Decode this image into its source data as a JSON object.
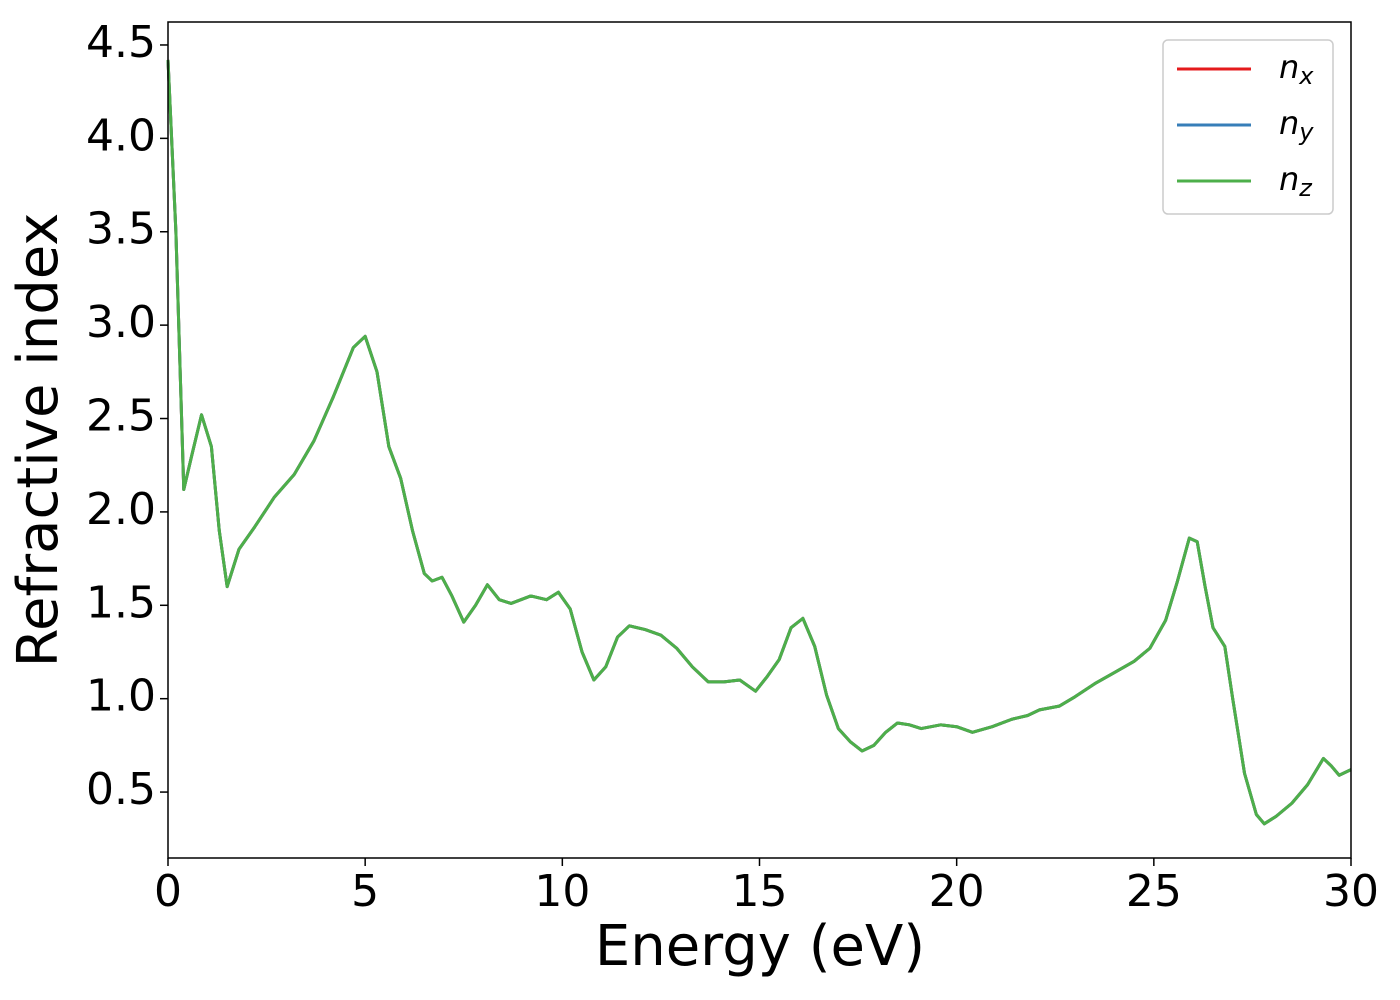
{
  "chart_data": {
    "type": "line",
    "x_label": "Energy (eV)",
    "y_label": "Refractive index",
    "x": [
      0,
      0.2,
      0.4,
      0.6,
      0.85,
      1.1,
      1.3,
      1.5,
      1.8,
      2.2,
      2.7,
      3.2,
      3.7,
      4.2,
      4.7,
      5.0,
      5.3,
      5.6,
      5.9,
      6.2,
      6.5,
      6.7,
      6.95,
      7.2,
      7.5,
      7.8,
      8.1,
      8.4,
      8.7,
      9.2,
      9.6,
      9.9,
      10.2,
      10.5,
      10.8,
      11.1,
      11.4,
      11.7,
      12.1,
      12.5,
      12.9,
      13.3,
      13.7,
      14.1,
      14.5,
      14.9,
      15.2,
      15.5,
      15.8,
      16.1,
      16.4,
      16.7,
      17.0,
      17.3,
      17.6,
      17.9,
      18.2,
      18.5,
      18.8,
      19.1,
      19.6,
      20.0,
      20.4,
      20.9,
      21.4,
      21.8,
      22.1,
      22.6,
      23.0,
      23.5,
      24.0,
      24.5,
      24.9,
      25.3,
      25.6,
      25.9,
      26.1,
      26.3,
      26.5,
      26.8,
      27.0,
      27.3,
      27.6,
      27.8,
      28.1,
      28.5,
      28.9,
      29.3,
      29.5,
      29.7,
      30.0
    ],
    "series": [
      {
        "name": "nx",
        "color": "#e41a1c",
        "values": [
          4.42,
          3.5,
          2.12,
          2.3,
          2.52,
          2.35,
          1.9,
          1.6,
          1.8,
          1.92,
          2.08,
          2.2,
          2.38,
          2.62,
          2.88,
          2.94,
          2.75,
          2.35,
          2.18,
          1.9,
          1.67,
          1.63,
          1.65,
          1.55,
          1.41,
          1.5,
          1.61,
          1.53,
          1.51,
          1.55,
          1.53,
          1.57,
          1.48,
          1.25,
          1.1,
          1.17,
          1.33,
          1.39,
          1.37,
          1.34,
          1.27,
          1.17,
          1.09,
          1.09,
          1.1,
          1.04,
          1.12,
          1.21,
          1.38,
          1.43,
          1.28,
          1.02,
          0.84,
          0.77,
          0.72,
          0.75,
          0.82,
          0.87,
          0.86,
          0.84,
          0.86,
          0.85,
          0.82,
          0.85,
          0.89,
          0.91,
          0.94,
          0.96,
          1.01,
          1.08,
          1.14,
          1.2,
          1.27,
          1.42,
          1.63,
          1.86,
          1.84,
          1.6,
          1.38,
          1.28,
          1.0,
          0.6,
          0.38,
          0.33,
          0.37,
          0.44,
          0.54,
          0.68,
          0.64,
          0.59,
          0.62
        ]
      },
      {
        "name": "ny",
        "color": "#377eb8",
        "values": [
          4.42,
          3.5,
          2.12,
          2.3,
          2.52,
          2.35,
          1.9,
          1.6,
          1.8,
          1.92,
          2.08,
          2.2,
          2.38,
          2.62,
          2.88,
          2.94,
          2.75,
          2.35,
          2.18,
          1.9,
          1.67,
          1.63,
          1.65,
          1.55,
          1.41,
          1.5,
          1.61,
          1.53,
          1.51,
          1.55,
          1.53,
          1.57,
          1.48,
          1.25,
          1.1,
          1.17,
          1.33,
          1.39,
          1.37,
          1.34,
          1.27,
          1.17,
          1.09,
          1.09,
          1.1,
          1.04,
          1.12,
          1.21,
          1.38,
          1.43,
          1.28,
          1.02,
          0.84,
          0.77,
          0.72,
          0.75,
          0.82,
          0.87,
          0.86,
          0.84,
          0.86,
          0.85,
          0.82,
          0.85,
          0.89,
          0.91,
          0.94,
          0.96,
          1.01,
          1.08,
          1.14,
          1.2,
          1.27,
          1.42,
          1.63,
          1.86,
          1.84,
          1.6,
          1.38,
          1.28,
          1.0,
          0.6,
          0.38,
          0.33,
          0.37,
          0.44,
          0.54,
          0.68,
          0.64,
          0.59,
          0.62
        ]
      },
      {
        "name": "nz",
        "color": "#4daf4a",
        "values": [
          4.42,
          3.5,
          2.12,
          2.3,
          2.52,
          2.35,
          1.9,
          1.6,
          1.8,
          1.92,
          2.08,
          2.2,
          2.38,
          2.62,
          2.88,
          2.94,
          2.75,
          2.35,
          2.18,
          1.9,
          1.67,
          1.63,
          1.65,
          1.55,
          1.41,
          1.5,
          1.61,
          1.53,
          1.51,
          1.55,
          1.53,
          1.57,
          1.48,
          1.25,
          1.1,
          1.17,
          1.33,
          1.39,
          1.37,
          1.34,
          1.27,
          1.17,
          1.09,
          1.09,
          1.1,
          1.04,
          1.12,
          1.21,
          1.38,
          1.43,
          1.28,
          1.02,
          0.84,
          0.77,
          0.72,
          0.75,
          0.82,
          0.87,
          0.86,
          0.84,
          0.86,
          0.85,
          0.82,
          0.85,
          0.89,
          0.91,
          0.94,
          0.96,
          1.01,
          1.08,
          1.14,
          1.2,
          1.27,
          1.42,
          1.63,
          1.86,
          1.84,
          1.6,
          1.38,
          1.28,
          1.0,
          0.6,
          0.38,
          0.33,
          0.37,
          0.44,
          0.54,
          0.68,
          0.64,
          0.59,
          0.62
        ]
      }
    ],
    "xlim": [
      0,
      30
    ],
    "xticks": [
      0,
      5,
      10,
      15,
      20,
      25,
      30
    ],
    "ylim": [
      0.147,
      4.623
    ],
    "yticks": [
      0.5,
      {
        "value": 1,
        "label": "1.0"
      },
      1.5,
      {
        "value": 2,
        "label": "2.0"
      },
      2.5,
      {
        "value": 3,
        "label": "3.0"
      },
      3.5,
      {
        "value": 4,
        "label": "4.0"
      },
      4.5
    ],
    "legend": "upper-right"
  }
}
